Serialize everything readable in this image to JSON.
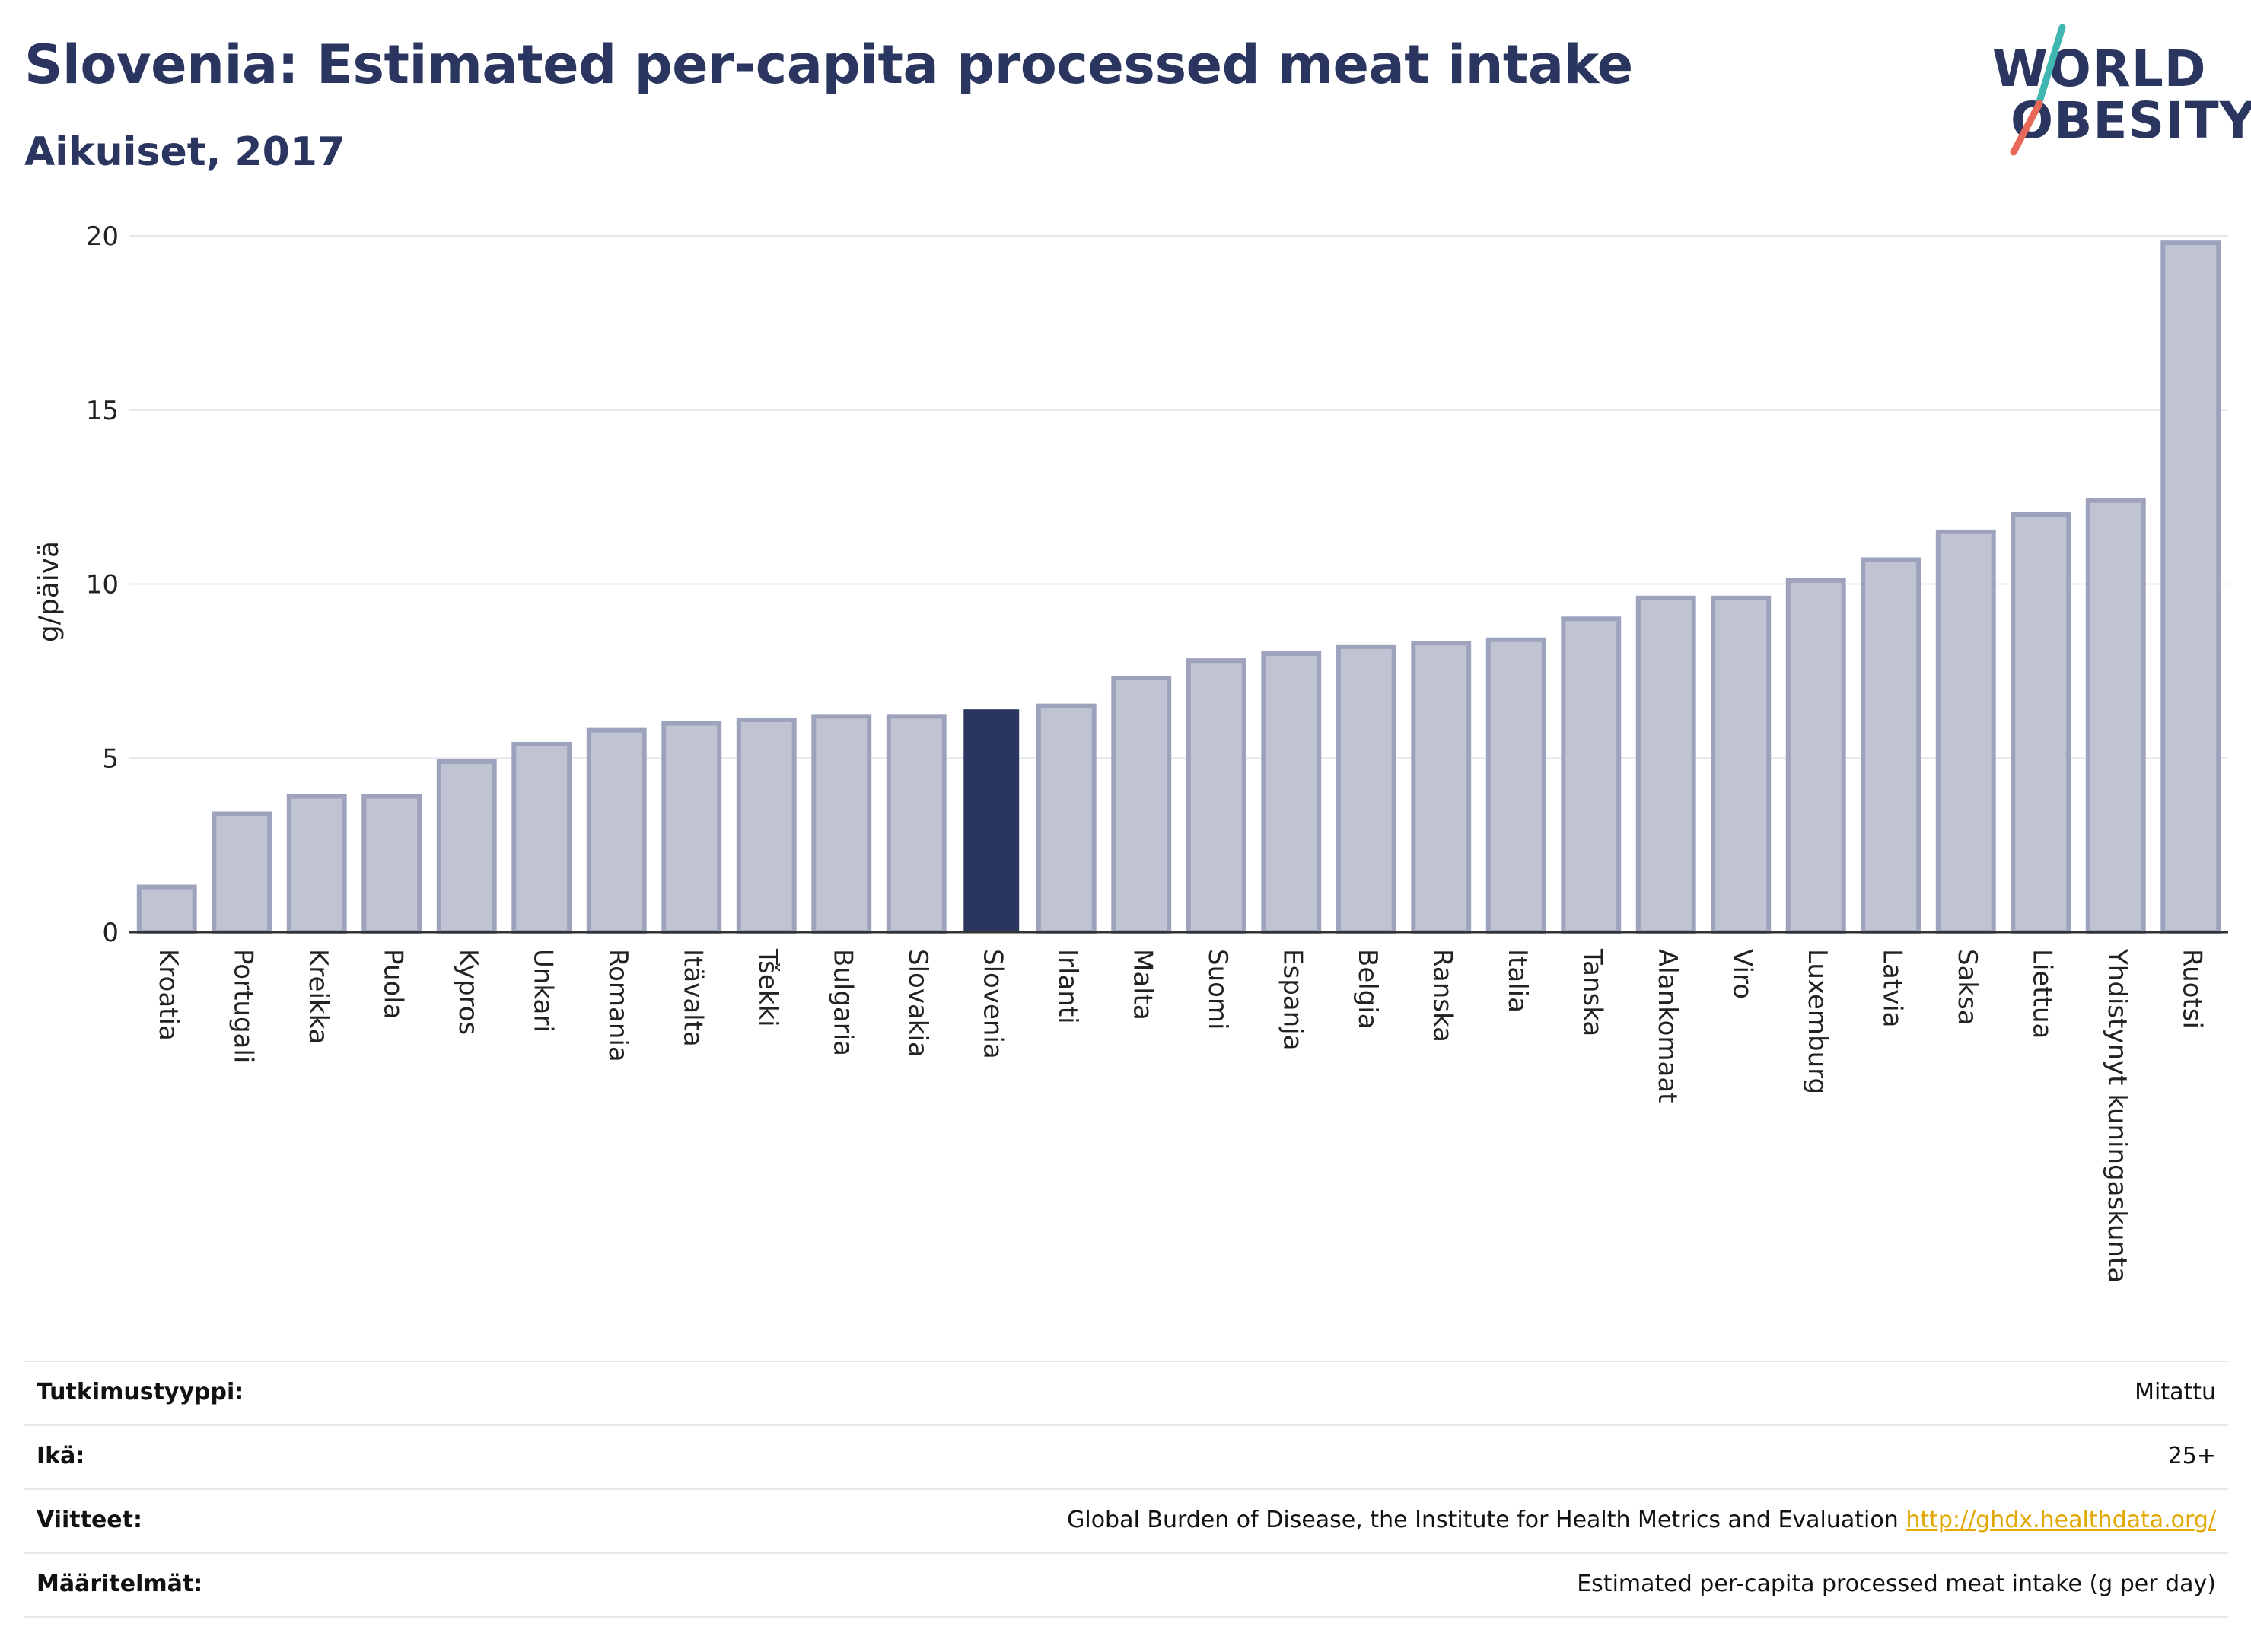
{
  "header": {
    "title": "Slovenia: Estimated per-capita processed meat intake",
    "subtitle": "Aikuiset, 2017"
  },
  "logo": {
    "line1": "WORLD",
    "line2": "OBESITY",
    "colors": {
      "text": "#2a3560",
      "slash_top": "#3fb6b0",
      "slash_bottom": "#e8685a"
    }
  },
  "colors": {
    "highlight": "#2a3560",
    "bar_fill": "#c0c4d2",
    "bar_stroke": "#9ea3bd",
    "grid": "#e6e8ee",
    "axis": "#333333",
    "link": "#e0a800"
  },
  "chart_data": {
    "type": "bar",
    "ylabel": "g/päivä",
    "ylim": [
      0,
      20
    ],
    "yticks": [
      0,
      5,
      10,
      15,
      20
    ],
    "grid": true,
    "highlight_category": "Slovenia",
    "categories": [
      "Kroatia",
      "Portugali",
      "Kreikka",
      "Puola",
      "Kypros",
      "Unkari",
      "Romania",
      "Itävalta",
      "Tšekki",
      "Bulgaria",
      "Slovakia",
      "Slovenia",
      "Irlanti",
      "Malta",
      "Suomi",
      "Espanja",
      "Belgia",
      "Ranska",
      "Italia",
      "Tanska",
      "Alankomaat",
      "Viro",
      "Luxemburg",
      "Latvia",
      "Saksa",
      "Liettua",
      "Yhdistynyt kuningaskunta",
      "Ruotsi"
    ],
    "values": [
      1.3,
      3.4,
      3.9,
      3.9,
      4.9,
      5.4,
      5.8,
      6.0,
      6.1,
      6.2,
      6.2,
      6.4,
      6.5,
      7.3,
      7.8,
      8.0,
      8.2,
      8.3,
      8.4,
      9.0,
      9.6,
      9.6,
      10.1,
      10.7,
      11.5,
      12.0,
      12.4,
      19.8
    ]
  },
  "meta": {
    "rows": [
      {
        "label": "Tutkimustyyppi:",
        "value": "Mitattu"
      },
      {
        "label": "Ikä:",
        "value": "25+"
      },
      {
        "label": "Viitteet:",
        "value": "Global Burden of Disease, the Institute for Health Metrics and Evaluation",
        "link": "http://ghdx.healthdata.org/"
      },
      {
        "label": "Määritelmät:",
        "value": "Estimated per-capita processed meat intake (g per day)"
      }
    ]
  }
}
